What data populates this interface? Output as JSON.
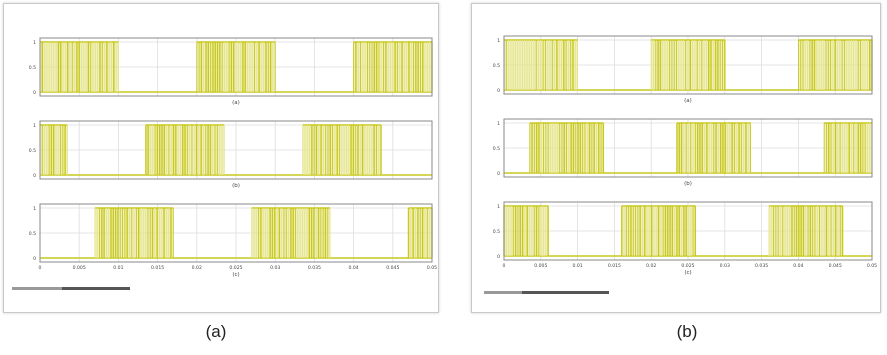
{
  "captions": {
    "a": "(a)",
    "b": "(b)"
  },
  "colors": {
    "signal": "#c8c81e",
    "signal_light": "#e4e48a",
    "axis": "#8a8a8a",
    "grid": "#dddddd",
    "text": "#444444"
  },
  "chart_data": [
    {
      "panel": "a",
      "type": "line",
      "x_ticks": [
        "0",
        "0.005",
        "0.01",
        "0.015",
        "0.02",
        "0.025",
        "0.03",
        "0.035",
        "0.04",
        "0.045",
        "0.05"
      ],
      "xlim": [
        0,
        0.05
      ],
      "subplots": [
        {
          "label": "(a)",
          "y_ticks": [
            "1",
            "0.5",
            "0"
          ],
          "ylim": [
            0,
            1
          ],
          "high_intervals": [
            [
              0,
              0.01
            ],
            [
              0.02,
              0.03
            ],
            [
              0.04,
              0.05
            ]
          ]
        },
        {
          "label": "(b)",
          "y_ticks": [
            "1",
            "0.5",
            "0"
          ],
          "ylim": [
            0,
            1
          ],
          "high_intervals": [
            [
              0,
              0.0035
            ],
            [
              0.0135,
              0.0235
            ],
            [
              0.0335,
              0.0435
            ]
          ]
        },
        {
          "label": "(c)",
          "y_ticks": [
            "1",
            "0.5",
            "0"
          ],
          "ylim": [
            0,
            1
          ],
          "high_intervals": [
            [
              0.007,
              0.017
            ],
            [
              0.027,
              0.037
            ],
            [
              0.047,
              0.05
            ]
          ]
        }
      ]
    },
    {
      "panel": "b",
      "type": "line",
      "x_ticks": [
        "0",
        "0.005",
        "0.01",
        "0.015",
        "0.02",
        "0.025",
        "0.03",
        "0.035",
        "0.04",
        "0.045",
        "0.05"
      ],
      "xlim": [
        0,
        0.05
      ],
      "subplots": [
        {
          "label": "(a)",
          "y_ticks": [
            "1",
            "0.5",
            "0"
          ],
          "ylim": [
            0,
            1
          ],
          "low_intervals": [
            [
              0.01,
              0.02
            ],
            [
              0.03,
              0.04
            ]
          ]
        },
        {
          "label": "(b)",
          "y_ticks": [
            "1",
            "0.5",
            "0"
          ],
          "ylim": [
            0,
            1
          ],
          "high_intervals": [
            [
              0.0035,
              0.0135
            ],
            [
              0.0235,
              0.0335
            ],
            [
              0.0435,
              0.05
            ]
          ]
        },
        {
          "label": "(c)",
          "y_ticks": [
            "1",
            "0.5",
            "0"
          ],
          "ylim": [
            0,
            1
          ],
          "high_intervals": [
            [
              0,
              0.006
            ],
            [
              0.016,
              0.026
            ],
            [
              0.036,
              0.046
            ]
          ]
        }
      ]
    }
  ]
}
